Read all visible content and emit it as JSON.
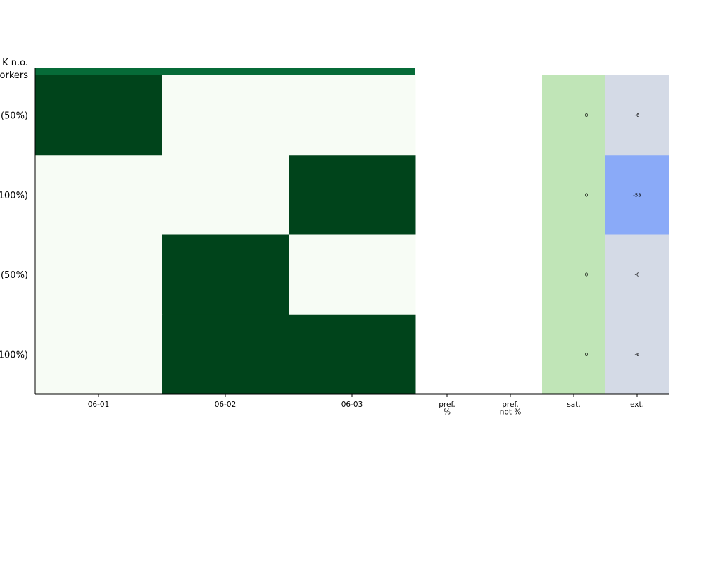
{
  "chart_data": {
    "type": "heatmap",
    "title": "",
    "header_row_label": [
      "K n.o.",
      "orkers"
    ],
    "header_row_color": "#066b38",
    "rows": [
      {
        "label": "(50%)",
        "values": [
          1,
          0,
          0
        ],
        "sat": "0",
        "ext": "-6"
      },
      {
        "label": "100%)",
        "values": [
          0,
          0,
          1
        ],
        "sat": "0",
        "ext": "-53"
      },
      {
        "label": "(50%)",
        "values": [
          0,
          1,
          0
        ],
        "sat": "0",
        "ext": "-6"
      },
      {
        "label": "100%)",
        "values": [
          0,
          1,
          1
        ],
        "sat": "0",
        "ext": "-6"
      }
    ],
    "day_columns": [
      "06-01",
      "06-02",
      "06-03"
    ],
    "pref_columns": [
      [
        "pref.",
        "%"
      ],
      [
        "pref.",
        "not %"
      ]
    ],
    "sat_label": "sat.",
    "ext_label": "ext.",
    "colors": {
      "assigned": "#00441b",
      "unassigned": "#f7fcf5",
      "sat": "#c0e5b7",
      "ext_default": "#d4dae6",
      "ext_highlight": "#8aaaf8"
    }
  }
}
